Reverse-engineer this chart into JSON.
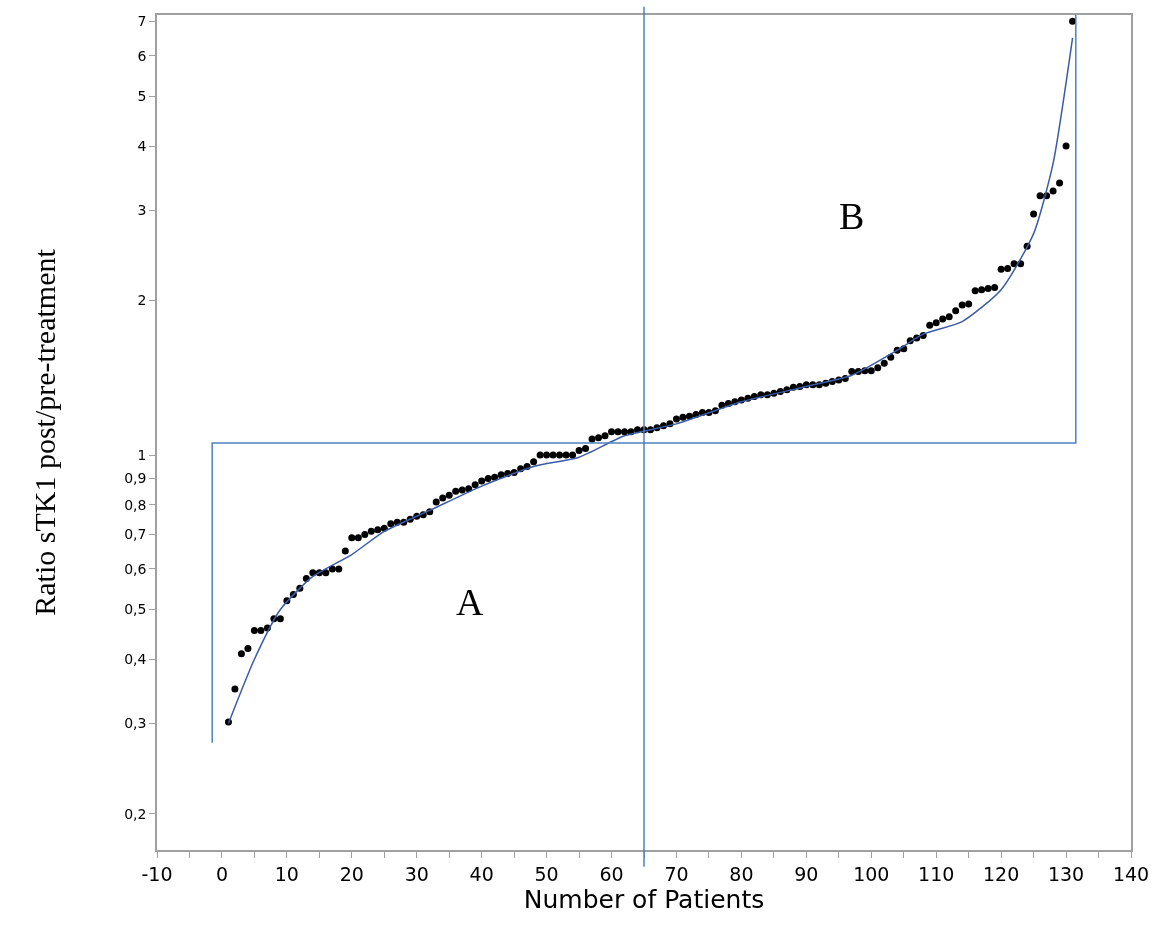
{
  "chart_data": {
    "type": "scatter",
    "xlabel": "Number of Patients",
    "ylabel": "Ratio sTK1 post/pre-treatment",
    "log": "y",
    "grid": false,
    "xlim": [
      -10,
      140
    ],
    "xticks": [
      -10,
      {
        "value": -5,
        "label": null
      },
      0,
      {
        "value": 5,
        "label": null
      },
      10,
      {
        "value": 15,
        "label": null
      },
      20,
      {
        "value": 25,
        "label": null
      },
      30,
      {
        "value": 35,
        "label": null
      },
      40,
      {
        "value": 45,
        "label": null
      },
      50,
      {
        "value": 55,
        "label": null
      },
      60,
      {
        "value": 65,
        "label": null
      },
      70,
      {
        "value": 75,
        "label": null
      },
      80,
      {
        "value": 85,
        "label": null
      },
      90,
      {
        "value": 95,
        "label": null
      },
      100,
      {
        "value": 105,
        "label": null
      },
      110,
      {
        "value": 115,
        "label": null
      },
      120,
      {
        "value": 125,
        "label": null
      },
      130,
      {
        "value": 135,
        "label": null
      },
      140
    ],
    "ylim": [
      0.17,
      7.2
    ],
    "yticks": [
      {
        "value": 0.2,
        "label": "0,2"
      },
      {
        "value": 0.3,
        "label": "0,3"
      },
      {
        "value": 0.4,
        "label": "0,4"
      },
      {
        "value": 0.5,
        "label": "0,5"
      },
      {
        "value": 0.6,
        "label": "0,6"
      },
      {
        "value": 0.7,
        "label": "0,7"
      },
      {
        "value": 0.8,
        "label": "0,8"
      },
      {
        "value": 0.9,
        "label": "0,9"
      },
      1,
      2,
      3,
      4,
      5,
      6,
      7
    ],
    "ref_lines": [
      {
        "axis": "x",
        "value": 65,
        "color": "#4f81bd"
      }
    ],
    "annotations": [
      "A",
      "B"
    ],
    "series": [
      {
        "marker": "circle",
        "color": "#000000",
        "x": [
          1,
          2,
          3,
          4,
          5,
          6,
          7,
          8,
          9,
          10,
          11,
          12,
          13,
          14,
          15,
          16,
          17,
          18,
          19,
          20,
          21,
          22,
          23,
          24,
          25,
          26,
          27,
          28,
          29,
          30,
          31,
          32,
          33,
          34,
          35,
          36,
          37,
          38,
          39,
          40,
          41,
          42,
          43,
          44,
          45,
          46,
          47,
          48,
          49,
          50,
          51,
          52,
          53,
          54,
          55,
          56,
          57,
          58,
          59,
          60,
          61,
          62,
          63,
          64,
          65,
          66,
          67,
          68,
          69,
          70,
          71,
          72,
          73,
          74,
          75,
          76,
          77,
          78,
          79,
          80,
          81,
          82,
          83,
          84,
          85,
          86,
          87,
          88,
          89,
          90,
          91,
          92,
          93,
          94,
          95,
          96,
          97,
          98,
          99,
          100,
          101,
          102,
          103,
          104,
          105,
          106,
          107,
          108,
          109,
          110,
          111,
          112,
          113,
          114,
          115,
          116,
          117,
          118,
          119,
          120,
          121,
          122,
          123,
          124,
          125,
          126,
          127,
          128,
          129,
          130,
          131
        ],
        "values": [
          0.302,
          0.35,
          0.41,
          0.42,
          0.455,
          0.455,
          0.46,
          0.48,
          0.48,
          0.52,
          0.535,
          0.55,
          0.575,
          0.59,
          0.59,
          0.59,
          0.6,
          0.6,
          0.65,
          0.69,
          0.69,
          0.7,
          0.71,
          0.715,
          0.72,
          0.735,
          0.74,
          0.74,
          0.75,
          0.76,
          0.765,
          0.775,
          0.81,
          0.825,
          0.835,
          0.85,
          0.855,
          0.86,
          0.875,
          0.89,
          0.9,
          0.905,
          0.915,
          0.92,
          0.925,
          0.94,
          0.95,
          0.97,
          1.0,
          1.0,
          1.0,
          1.0,
          1.0,
          1.0,
          1.02,
          1.03,
          1.075,
          1.08,
          1.09,
          1.11,
          1.11,
          1.11,
          1.11,
          1.12,
          1.12,
          1.12,
          1.13,
          1.14,
          1.15,
          1.175,
          1.185,
          1.19,
          1.2,
          1.21,
          1.21,
          1.22,
          1.25,
          1.26,
          1.27,
          1.28,
          1.29,
          1.3,
          1.31,
          1.31,
          1.32,
          1.33,
          1.34,
          1.355,
          1.36,
          1.37,
          1.37,
          1.37,
          1.38,
          1.39,
          1.4,
          1.41,
          1.455,
          1.455,
          1.46,
          1.46,
          1.48,
          1.51,
          1.55,
          1.6,
          1.61,
          1.67,
          1.69,
          1.71,
          1.79,
          1.81,
          1.84,
          1.86,
          1.91,
          1.96,
          1.97,
          2.09,
          2.1,
          2.11,
          2.12,
          2.3,
          2.31,
          2.36,
          2.36,
          2.55,
          2.95,
          3.2,
          3.2,
          3.27,
          3.39,
          4.0,
          7.0
        ]
      },
      {
        "type": "line",
        "marker": "none",
        "color": "#3b5ba5",
        "x": [
          1,
          5,
          9,
          14,
          20,
          25,
          32,
          40,
          48,
          55,
          62,
          70,
          80,
          90,
          97,
          104,
          108,
          114,
          120,
          125,
          128,
          131
        ],
        "values": [
          0.3,
          0.4,
          0.5,
          0.58,
          0.64,
          0.71,
          0.78,
          0.87,
          0.95,
          0.99,
          1.09,
          1.15,
          1.27,
          1.36,
          1.43,
          1.6,
          1.72,
          1.82,
          2.1,
          2.7,
          3.7,
          6.5
        ]
      },
      {
        "type": "line",
        "marker": "none",
        "color": "#4f81bd",
        "x": [
          -1.5,
          -1.5,
          131.5,
          131.5
        ],
        "values": [
          0.275,
          1.055,
          1.055,
          7.2
        ]
      }
    ]
  }
}
